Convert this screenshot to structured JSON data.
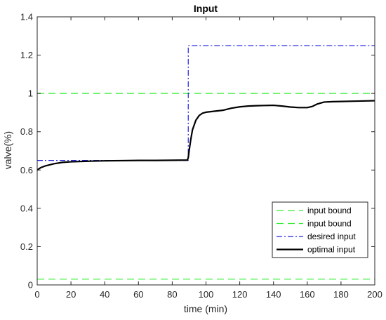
{
  "chart_data": {
    "type": "line",
    "title": "Input",
    "xlabel": "time (min)",
    "ylabel": "valve(%)",
    "xlim": [
      0,
      200
    ],
    "ylim": [
      0,
      1.4
    ],
    "xticks": [
      0,
      20,
      40,
      60,
      80,
      100,
      120,
      140,
      160,
      180,
      200
    ],
    "xtick_labels": [
      "0",
      "20",
      "40",
      "60",
      "80",
      "100",
      "120",
      "140",
      "160",
      "180",
      "200"
    ],
    "yticks": [
      0,
      0.2,
      0.4,
      0.6,
      0.8,
      1.0,
      1.2,
      1.4
    ],
    "ytick_labels": [
      "0",
      "0.2",
      "0.4",
      "0.6",
      "0.8",
      "1",
      "1.2",
      "1.4"
    ],
    "grid": false,
    "legend_position": "bottom-right",
    "series": [
      {
        "name": "input bound",
        "color": "#33ee33",
        "style": "dashed",
        "x": [
          0,
          200
        ],
        "y": [
          1.0,
          1.0
        ]
      },
      {
        "name": "input bound",
        "color": "#33ee33",
        "style": "dashed",
        "x": [
          0,
          200
        ],
        "y": [
          0.03,
          0.03
        ]
      },
      {
        "name": "desired input",
        "color": "#2222dd",
        "style": "dashdot",
        "x": [
          0,
          89.5,
          89.5,
          200
        ],
        "y": [
          0.65,
          0.65,
          1.25,
          1.25
        ]
      },
      {
        "name": "optimal input",
        "color": "#000000",
        "style": "solid",
        "x": [
          0,
          2,
          5,
          10,
          15,
          20,
          30,
          40,
          50,
          60,
          70,
          80,
          89,
          89.5,
          90,
          91,
          92,
          94,
          96,
          98,
          100,
          105,
          110,
          115,
          120,
          125,
          130,
          135,
          140,
          145,
          150,
          155,
          160,
          163,
          166,
          170,
          175,
          180,
          190,
          200
        ],
        "y": [
          0.6,
          0.612,
          0.622,
          0.633,
          0.64,
          0.643,
          0.646,
          0.648,
          0.649,
          0.65,
          0.65,
          0.651,
          0.652,
          0.665,
          0.7,
          0.76,
          0.81,
          0.86,
          0.885,
          0.897,
          0.902,
          0.907,
          0.912,
          0.923,
          0.93,
          0.934,
          0.936,
          0.937,
          0.938,
          0.934,
          0.929,
          0.926,
          0.926,
          0.932,
          0.945,
          0.955,
          0.957,
          0.958,
          0.96,
          0.962
        ]
      }
    ]
  }
}
